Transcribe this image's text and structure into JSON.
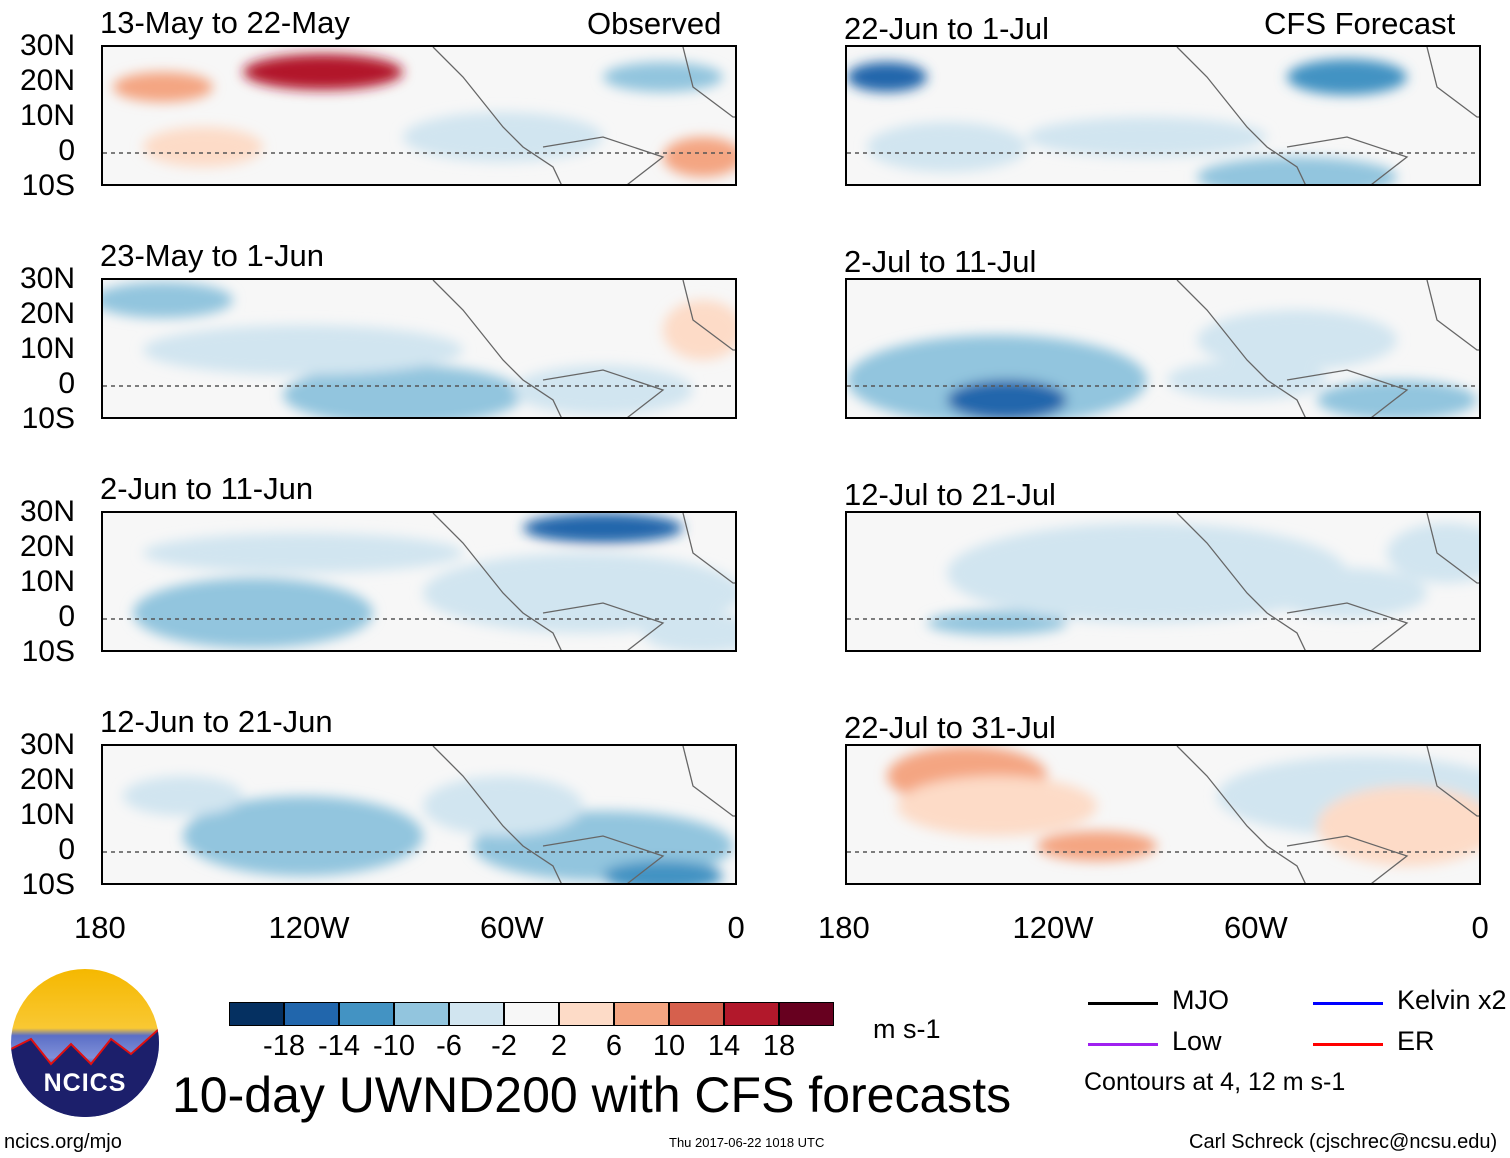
{
  "observed_label": "Observed",
  "forecast_label": "CFS Forecast",
  "panels_observed": [
    "13-May to 22-May",
    "23-May to 1-Jun",
    "2-Jun to 11-Jun",
    "12-Jun to 21-Jun"
  ],
  "panels_forecast": [
    "22-Jun to 1-Jul",
    "2-Jul to 11-Jul",
    "12-Jul to 21-Jul",
    "22-Jul to 31-Jul"
  ],
  "lat_labels": [
    "30N",
    "20N",
    "10N",
    "0",
    "10S"
  ],
  "lon_labels": [
    "180",
    "120W",
    "60W",
    "0"
  ],
  "colorbar": {
    "colors": [
      "#053061",
      "#2166ac",
      "#4393c3",
      "#92c5de",
      "#d1e5f0",
      "#f7f7f7",
      "#fddbc7",
      "#f4a582",
      "#d6604d",
      "#b2182b",
      "#67001f"
    ],
    "labels": [
      "-18",
      "-14",
      "-10",
      "-6",
      "-2",
      "2",
      "6",
      "10",
      "14",
      "18"
    ],
    "units": "m s-1"
  },
  "title": "10-day UWND200 with CFS forecasts",
  "legend": [
    {
      "label": "MJO",
      "color": "#000000"
    },
    {
      "label": "Kelvin x2",
      "color": "#0000ff"
    },
    {
      "label": "Low",
      "color": "#a020f0"
    },
    {
      "label": "ER",
      "color": "#ff0000"
    }
  ],
  "contours_note": "Contours at 4, 12 m s-1",
  "logo_text": "NCICS",
  "footer": {
    "left": "ncics.org/mjo",
    "center": "Thu 2017-06-22 1018 UTC",
    "right": "Carl Schreck (cjschrec@ncsu.edu)"
  }
}
